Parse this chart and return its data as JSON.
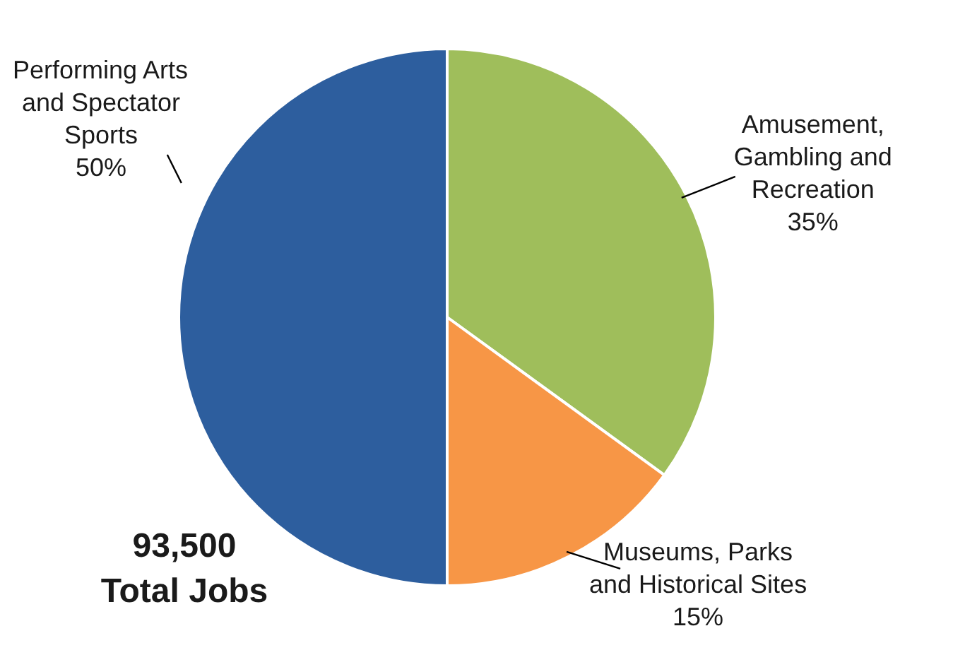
{
  "chart_data": {
    "type": "pie",
    "categories": [
      "Amusement,\nGambling and\nRecreation",
      "Museums, Parks\nand Historical Sites",
      "Performing Arts\nand Spectator\nSports"
    ],
    "values": [
      35,
      15,
      50
    ],
    "colors": [
      "#9fbe5b",
      "#f79646",
      "#2d5e9e"
    ],
    "value_labels": [
      "35%",
      "15%",
      "50%"
    ],
    "annotations": [
      "93,500\nTotal Jobs"
    ]
  }
}
